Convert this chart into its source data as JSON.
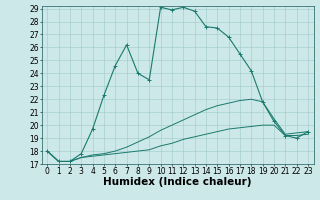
{
  "xlabel": "Humidex (Indice chaleur)",
  "background_color": "#cce8e8",
  "line_color": "#1a7a6e",
  "xlim": [
    -0.5,
    23.5
  ],
  "ylim": [
    17,
    29.2
  ],
  "yticks": [
    17,
    18,
    19,
    20,
    21,
    22,
    23,
    24,
    25,
    26,
    27,
    28,
    29
  ],
  "xticks": [
    0,
    1,
    2,
    3,
    4,
    5,
    6,
    7,
    8,
    9,
    10,
    11,
    12,
    13,
    14,
    15,
    16,
    17,
    18,
    19,
    20,
    21,
    22,
    23
  ],
  "series_main_x": [
    0,
    1,
    2,
    3,
    4,
    5,
    6,
    7,
    8,
    9,
    10,
    11,
    12,
    13,
    14,
    15,
    16,
    17,
    18,
    19,
    20,
    21,
    22,
    23
  ],
  "series_main_y": [
    18.0,
    17.2,
    17.2,
    17.8,
    19.7,
    22.3,
    24.6,
    26.2,
    24.0,
    23.5,
    29.1,
    28.9,
    29.1,
    28.8,
    27.6,
    27.5,
    26.8,
    25.5,
    24.2,
    21.8,
    20.3,
    19.2,
    19.0,
    19.5
  ],
  "series_mid_x": [
    0,
    1,
    2,
    3,
    4,
    5,
    6,
    7,
    8,
    9,
    10,
    11,
    12,
    13,
    14,
    15,
    16,
    17,
    18,
    19,
    20,
    21,
    22,
    23
  ],
  "series_mid_y": [
    18.0,
    17.2,
    17.2,
    17.5,
    17.7,
    17.8,
    18.0,
    18.3,
    18.7,
    19.1,
    19.6,
    20.0,
    20.4,
    20.8,
    21.2,
    21.5,
    21.7,
    21.9,
    22.0,
    21.8,
    20.5,
    19.3,
    19.4,
    19.5
  ],
  "series_bot_x": [
    0,
    1,
    2,
    3,
    4,
    5,
    6,
    7,
    8,
    9,
    10,
    11,
    12,
    13,
    14,
    15,
    16,
    17,
    18,
    19,
    20,
    21,
    22,
    23
  ],
  "series_bot_y": [
    18.0,
    17.2,
    17.2,
    17.5,
    17.6,
    17.7,
    17.8,
    17.9,
    18.0,
    18.1,
    18.4,
    18.6,
    18.9,
    19.1,
    19.3,
    19.5,
    19.7,
    19.8,
    19.9,
    20.0,
    20.0,
    19.2,
    19.2,
    19.3
  ],
  "grid_color": "#a0c8c8",
  "tick_fontsize": 5.5,
  "xlabel_fontsize": 7.5
}
